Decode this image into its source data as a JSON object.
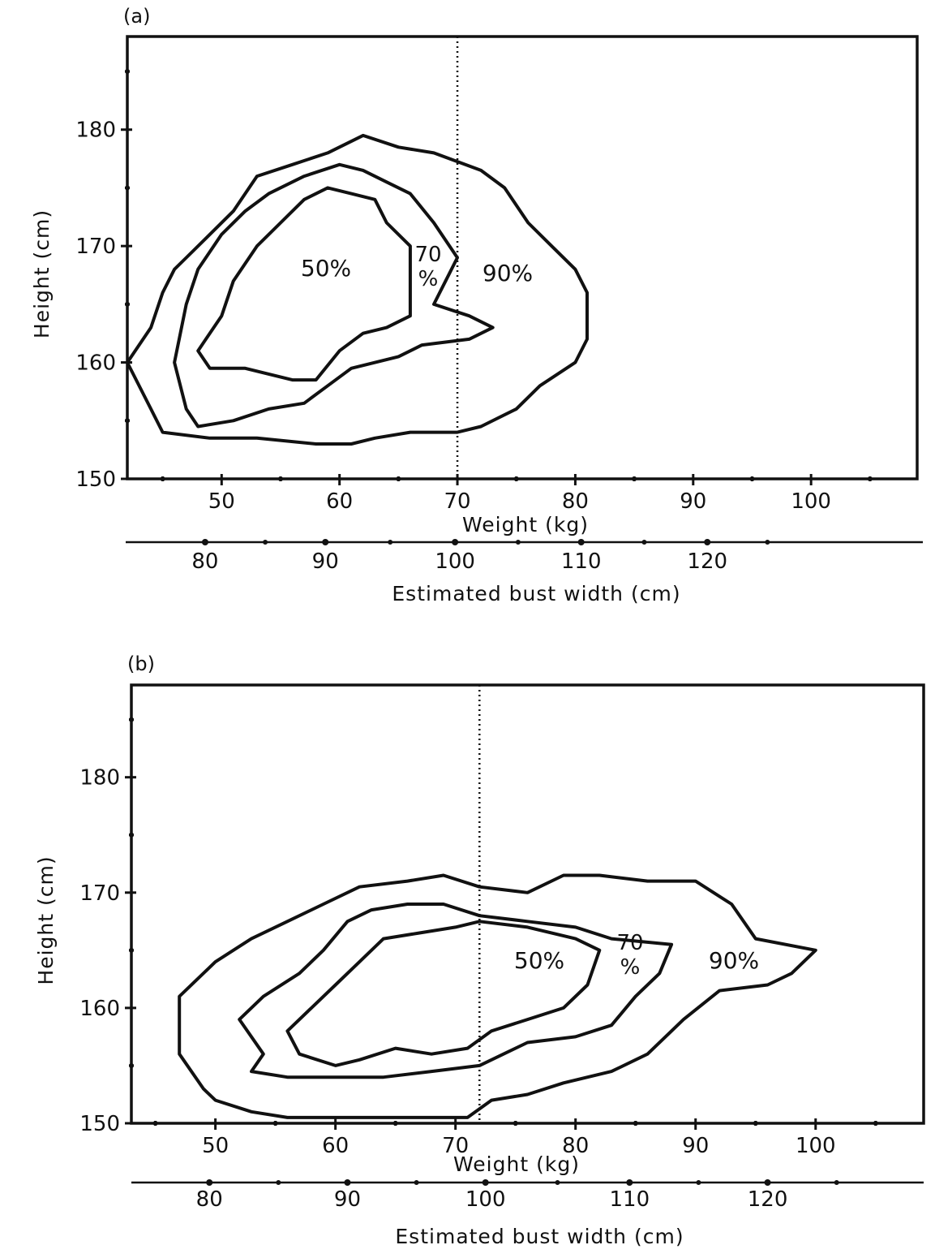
{
  "chart_data": [
    {
      "type": "contour",
      "panel_label": "(a)",
      "xlabel": "Weight (kg)",
      "ylabel": "Height (cm)",
      "xlim": [
        42,
        109
      ],
      "ylim": [
        150,
        188
      ],
      "x_ticks": [
        "50",
        "60",
        "70",
        "80",
        "90",
        "100"
      ],
      "y_ticks": [
        "150",
        "160",
        "170",
        "180"
      ],
      "reference_line_x": 70,
      "secondary_axis": {
        "label": "Estimated bust width (cm)",
        "tick_labels": [
          "80",
          "90",
          "100",
          "110",
          "120"
        ],
        "tick_values": [
          80,
          90,
          100,
          110,
          120
        ],
        "tick_weights": [
          48.6,
          58.8,
          69.8,
          80.5,
          91.2
        ]
      },
      "series": [
        {
          "name": "50%",
          "label": "50%",
          "points": [
            [
              48,
              161
            ],
            [
              50,
              164
            ],
            [
              51,
              167
            ],
            [
              53,
              170
            ],
            [
              55,
              172
            ],
            [
              57,
              174
            ],
            [
              59,
              175
            ],
            [
              61,
              174.5
            ],
            [
              63,
              174
            ],
            [
              64,
              172
            ],
            [
              66,
              170
            ],
            [
              66,
              166
            ],
            [
              66,
              164
            ],
            [
              64,
              163
            ],
            [
              62,
              162.5
            ],
            [
              60,
              161
            ],
            [
              58,
              158.5
            ],
            [
              56,
              158.5
            ],
            [
              52,
              159.5
            ],
            [
              49,
              159.5
            ],
            [
              48,
              161
            ]
          ]
        },
        {
          "name": "70%",
          "label_line1": "70",
          "label_line2": "%",
          "points": [
            [
              46,
              160
            ],
            [
              47,
              165
            ],
            [
              48,
              168
            ],
            [
              50,
              171
            ],
            [
              52,
              173
            ],
            [
              54,
              174.5
            ],
            [
              57,
              176
            ],
            [
              60,
              177
            ],
            [
              62,
              176.5
            ],
            [
              64,
              175.5
            ],
            [
              66,
              174.5
            ],
            [
              68,
              172
            ],
            [
              70,
              169
            ],
            [
              69,
              167
            ],
            [
              68,
              165
            ],
            [
              71,
              164
            ],
            [
              73,
              163
            ],
            [
              71,
              162
            ],
            [
              67,
              161.5
            ],
            [
              65,
              160.5
            ],
            [
              61,
              159.5
            ],
            [
              59,
              158
            ],
            [
              57,
              156.5
            ],
            [
              54,
              156
            ],
            [
              51,
              155
            ],
            [
              48,
              154.5
            ],
            [
              47,
              156
            ],
            [
              46,
              160
            ]
          ]
        },
        {
          "name": "90%",
          "label": "90%",
          "points": [
            [
              42,
              160
            ],
            [
              44,
              163
            ],
            [
              45,
              166
            ],
            [
              46,
              168
            ],
            [
              47,
              169
            ],
            [
              49,
              171
            ],
            [
              51,
              173
            ],
            [
              53,
              176
            ],
            [
              56,
              177
            ],
            [
              59,
              178
            ],
            [
              62,
              179.5
            ],
            [
              65,
              178.5
            ],
            [
              68,
              178
            ],
            [
              72,
              176.5
            ],
            [
              74,
              175
            ],
            [
              76,
              172
            ],
            [
              78,
              170
            ],
            [
              80,
              168
            ],
            [
              81,
              166
            ],
            [
              81,
              162
            ],
            [
              80,
              160
            ],
            [
              77,
              158
            ],
            [
              75,
              156
            ],
            [
              72,
              154.5
            ],
            [
              70,
              154
            ],
            [
              66,
              154
            ],
            [
              63,
              153.5
            ],
            [
              61,
              153
            ],
            [
              58,
              153
            ],
            [
              53,
              153.5
            ],
            [
              49,
              153.5
            ],
            [
              45,
              154
            ],
            [
              44,
              156
            ],
            [
              42,
              160
            ]
          ]
        }
      ]
    },
    {
      "type": "contour",
      "panel_label": "(b)",
      "xlabel": "Weight (kg)",
      "ylabel": "Height (cm)",
      "xlim": [
        43,
        109
      ],
      "ylim": [
        150,
        188
      ],
      "x_ticks": [
        "50",
        "60",
        "70",
        "80",
        "90",
        "100"
      ],
      "y_ticks": [
        "150",
        "160",
        "170",
        "180"
      ],
      "reference_line_x": 72,
      "secondary_axis": {
        "label": "Estimated bust width (cm)",
        "tick_labels": [
          "80",
          "90",
          "100",
          "110",
          "120"
        ],
        "tick_values": [
          80,
          90,
          100,
          110,
          120
        ],
        "tick_weights": [
          49.5,
          61,
          72.5,
          84.5,
          96
        ]
      },
      "series": [
        {
          "name": "50%",
          "label": "50%",
          "points": [
            [
              56,
              158
            ],
            [
              58,
              160
            ],
            [
              60,
              162
            ],
            [
              62,
              164
            ],
            [
              64,
              166
            ],
            [
              67,
              166.5
            ],
            [
              70,
              167
            ],
            [
              72,
              167.5
            ],
            [
              76,
              167
            ],
            [
              80,
              166
            ],
            [
              82,
              165
            ],
            [
              81,
              162
            ],
            [
              79,
              160
            ],
            [
              76,
              159
            ],
            [
              73,
              158
            ],
            [
              71,
              156.5
            ],
            [
              68,
              156
            ],
            [
              65,
              156.5
            ],
            [
              62,
              155.5
            ],
            [
              60,
              155
            ],
            [
              57,
              156
            ],
            [
              56,
              158
            ]
          ]
        },
        {
          "name": "70%",
          "label_line1": "70",
          "label_line2": "%",
          "points": [
            [
              52,
              159
            ],
            [
              54,
              161
            ],
            [
              57,
              163
            ],
            [
              59,
              165
            ],
            [
              61,
              167.5
            ],
            [
              63,
              168.5
            ],
            [
              66,
              169
            ],
            [
              69,
              169
            ],
            [
              72,
              168
            ],
            [
              76,
              167.5
            ],
            [
              80,
              167
            ],
            [
              83,
              166
            ],
            [
              88,
              165.5
            ],
            [
              87,
              163
            ],
            [
              85,
              161
            ],
            [
              83,
              158.5
            ],
            [
              80,
              157.5
            ],
            [
              76,
              157
            ],
            [
              74,
              156
            ],
            [
              72,
              155
            ],
            [
              68,
              154.5
            ],
            [
              64,
              154
            ],
            [
              60,
              154
            ],
            [
              56,
              154
            ],
            [
              53,
              154.5
            ],
            [
              54,
              156
            ],
            [
              52,
              159
            ]
          ]
        },
        {
          "name": "90%",
          "label": "90%",
          "points": [
            [
              47,
              161
            ],
            [
              50,
              164
            ],
            [
              53,
              166
            ],
            [
              56,
              167.5
            ],
            [
              59,
              169
            ],
            [
              62,
              170.5
            ],
            [
              66,
              171
            ],
            [
              69,
              171.5
            ],
            [
              72,
              170.5
            ],
            [
              76,
              170
            ],
            [
              79,
              171.5
            ],
            [
              82,
              171.5
            ],
            [
              86,
              171
            ],
            [
              90,
              171
            ],
            [
              93,
              169
            ],
            [
              95,
              166
            ],
            [
              100,
              165
            ],
            [
              98,
              163
            ],
            [
              96,
              162
            ],
            [
              92,
              161.5
            ],
            [
              89,
              159
            ],
            [
              86,
              156
            ],
            [
              83,
              154.5
            ],
            [
              79,
              153.5
            ],
            [
              76,
              152.5
            ],
            [
              73,
              152
            ],
            [
              71,
              150.5
            ],
            [
              68,
              150.5
            ],
            [
              62,
              150.5
            ],
            [
              56,
              150.5
            ],
            [
              53,
              151
            ],
            [
              50,
              152
            ],
            [
              49,
              153
            ],
            [
              47,
              156
            ],
            [
              47,
              161
            ]
          ]
        }
      ]
    }
  ]
}
